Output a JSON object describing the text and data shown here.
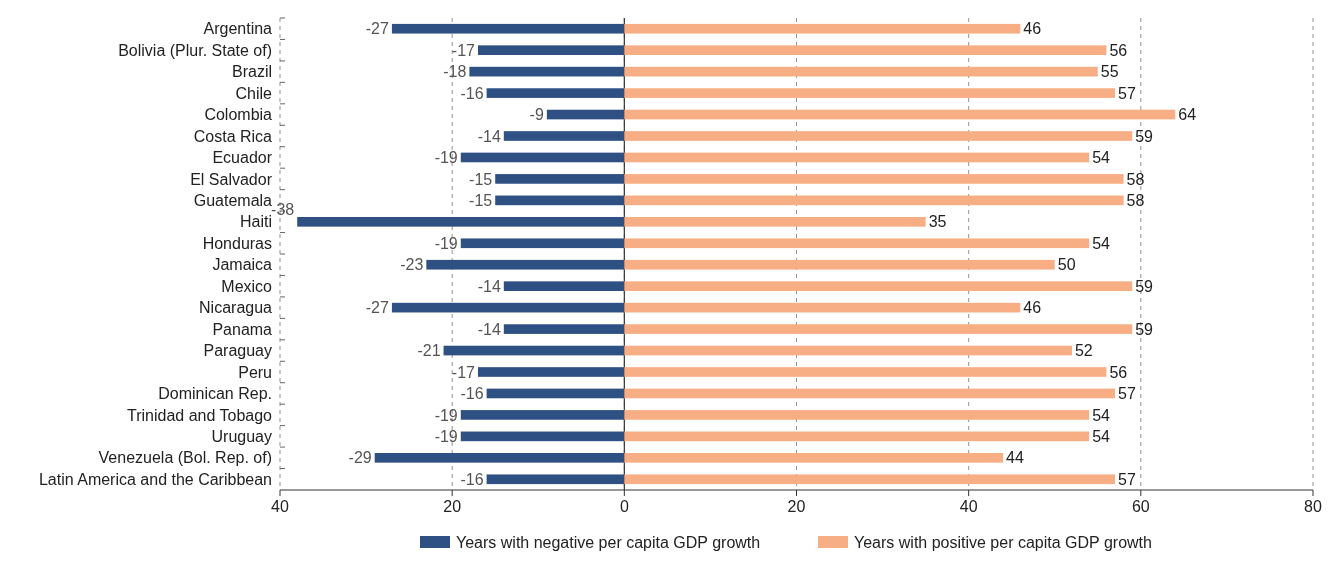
{
  "chart_data": {
    "type": "bar",
    "orientation": "horizontal",
    "stacked": true,
    "data_labels": true,
    "grid": "x",
    "legend": "bottom",
    "categories": [
      "Argentina",
      "Bolivia (Plur. State of)",
      "Brazil",
      "Chile",
      "Colombia",
      "Costa Rica",
      "Ecuador",
      "El Salvador",
      "Guatemala",
      "Haiti",
      "Honduras",
      "Jamaica",
      "Mexico",
      "Nicaragua",
      "Panama",
      "Paraguay",
      "Peru",
      "Dominican Rep.",
      "Trinidad and Tobago ",
      "Uruguay",
      "Venezuela (Bol. Rep. of)",
      "Latin America and the Caribbean"
    ],
    "series": [
      {
        "name": "Years with negative per capita GDP growth",
        "color": "#2f5083",
        "values": [
          -27,
          -17,
          -18,
          -16,
          -9,
          -14,
          -19,
          -15,
          -15,
          -38,
          -19,
          -23,
          -14,
          -27,
          -14,
          -21,
          -17,
          -16,
          -19,
          -19,
          -29,
          -16
        ]
      },
      {
        "name": "Years with positive per capita GDP growth",
        "color": "#f7ae84",
        "values": [
          46,
          56,
          55,
          57,
          64,
          59,
          54,
          58,
          58,
          35,
          54,
          50,
          59,
          46,
          59,
          52,
          56,
          57,
          54,
          54,
          44,
          57
        ]
      }
    ],
    "xlim": [
      -40,
      80
    ],
    "xticks": [
      {
        "value": -40,
        "label": "40"
      },
      {
        "value": -20,
        "label": "20"
      },
      0,
      20,
      40,
      60,
      80
    ]
  }
}
